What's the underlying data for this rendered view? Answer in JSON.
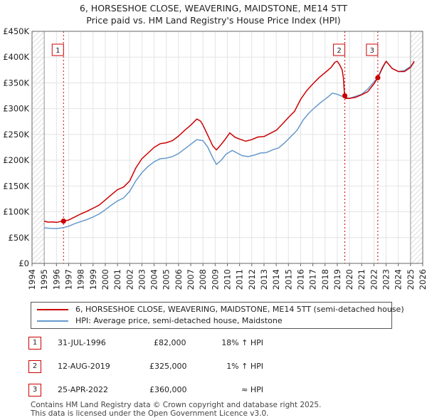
{
  "header": {
    "title_line1": "6, HORSESHOE CLOSE, WEAVERING, MAIDSTONE, ME14 5TT",
    "title_line2": "Price paid vs. HM Land Registry's House Price Index (HPI)"
  },
  "colors": {
    "property": "#cc0000",
    "hpi": "#6699cc",
    "marker_line": "#cc0000",
    "grid": "#e4e4e4",
    "hatch": "#c8c8c8"
  },
  "chart_data": {
    "type": "line",
    "x_range": [
      1994,
      2026
    ],
    "ylim": [
      0,
      450000
    ],
    "y_ticks": [
      {
        "value": 0,
        "label": "£0"
      },
      {
        "value": 50000,
        "label": "£50K"
      },
      {
        "value": 100000,
        "label": "£100K"
      },
      {
        "value": 150000,
        "label": "£150K"
      },
      {
        "value": 200000,
        "label": "£200K"
      },
      {
        "value": 250000,
        "label": "£250K"
      },
      {
        "value": 300000,
        "label": "£300K"
      },
      {
        "value": 350000,
        "label": "£350K"
      },
      {
        "value": 400000,
        "label": "£400K"
      },
      {
        "value": 450000,
        "label": "£450K"
      }
    ],
    "x_ticks": [
      "1994",
      "1995",
      "1996",
      "1997",
      "1998",
      "1999",
      "2000",
      "2001",
      "2002",
      "2003",
      "2004",
      "2005",
      "2006",
      "2007",
      "2008",
      "2009",
      "2010",
      "2011",
      "2012",
      "2013",
      "2014",
      "2015",
      "2016",
      "2017",
      "2018",
      "2019",
      "2020",
      "2021",
      "2022",
      "2023",
      "2024",
      "2025",
      "2026"
    ],
    "hatched_periods": [
      [
        1994,
        1995.0
      ],
      [
        2025.0,
        2026
      ]
    ],
    "series": [
      {
        "name": "6, HORSESHOE CLOSE, WEAVERING, MAIDSTONE, ME14 5TT (semi-detached house)",
        "color": "#cc0000",
        "points": [
          [
            1995.0,
            82000
          ],
          [
            1995.3,
            80000
          ],
          [
            1995.7,
            80500
          ],
          [
            1996.0,
            79500
          ],
          [
            1996.3,
            81000
          ],
          [
            1996.58,
            82000
          ],
          [
            1997.0,
            84000
          ],
          [
            1997.5,
            90000
          ],
          [
            1998.0,
            96000
          ],
          [
            1998.5,
            101000
          ],
          [
            1999.0,
            107000
          ],
          [
            1999.5,
            113000
          ],
          [
            2000.0,
            123000
          ],
          [
            2000.5,
            133000
          ],
          [
            2001.0,
            143000
          ],
          [
            2001.5,
            148000
          ],
          [
            2002.0,
            160000
          ],
          [
            2002.5,
            185000
          ],
          [
            2003.0,
            203000
          ],
          [
            2003.5,
            214000
          ],
          [
            2004.0,
            225000
          ],
          [
            2004.5,
            232000
          ],
          [
            2005.0,
            234000
          ],
          [
            2005.5,
            238000
          ],
          [
            2006.0,
            247000
          ],
          [
            2006.5,
            258000
          ],
          [
            2007.0,
            268000
          ],
          [
            2007.5,
            280000
          ],
          [
            2007.8,
            276000
          ],
          [
            2008.0,
            268000
          ],
          [
            2008.4,
            248000
          ],
          [
            2008.8,
            228000
          ],
          [
            2009.1,
            220000
          ],
          [
            2009.4,
            228000
          ],
          [
            2009.8,
            240000
          ],
          [
            2010.2,
            253000
          ],
          [
            2010.6,
            245000
          ],
          [
            2011.0,
            241000
          ],
          [
            2011.5,
            237000
          ],
          [
            2012.0,
            240000
          ],
          [
            2012.5,
            245000
          ],
          [
            2013.0,
            246000
          ],
          [
            2013.5,
            252000
          ],
          [
            2014.0,
            258000
          ],
          [
            2014.5,
            270000
          ],
          [
            2015.0,
            283000
          ],
          [
            2015.5,
            295000
          ],
          [
            2016.0,
            318000
          ],
          [
            2016.5,
            335000
          ],
          [
            2017.0,
            348000
          ],
          [
            2017.5,
            360000
          ],
          [
            2018.0,
            370000
          ],
          [
            2018.5,
            380000
          ],
          [
            2018.8,
            390000
          ],
          [
            2019.0,
            392000
          ],
          [
            2019.2,
            385000
          ],
          [
            2019.4,
            375000
          ],
          [
            2019.5,
            360000
          ],
          [
            2019.6,
            325000
          ],
          [
            2019.65,
            320000
          ],
          [
            2020.0,
            320000
          ],
          [
            2020.5,
            322000
          ],
          [
            2021.0,
            327000
          ],
          [
            2021.5,
            333000
          ],
          [
            2022.0,
            348000
          ],
          [
            2022.32,
            360000
          ],
          [
            2022.7,
            380000
          ],
          [
            2023.0,
            392000
          ],
          [
            2023.5,
            378000
          ],
          [
            2024.0,
            372000
          ],
          [
            2024.5,
            372000
          ],
          [
            2025.0,
            380000
          ],
          [
            2025.3,
            392000
          ]
        ]
      },
      {
        "name": "HPI: Average price, semi-detached house, Maidstone",
        "color": "#6699cc",
        "points": [
          [
            1995.0,
            69000
          ],
          [
            1995.5,
            68000
          ],
          [
            1996.0,
            67500
          ],
          [
            1996.58,
            69500
          ],
          [
            1997.0,
            72000
          ],
          [
            1997.5,
            77000
          ],
          [
            1998.0,
            81000
          ],
          [
            1998.5,
            85000
          ],
          [
            1999.0,
            90000
          ],
          [
            1999.5,
            96000
          ],
          [
            2000.0,
            104000
          ],
          [
            2000.5,
            113000
          ],
          [
            2001.0,
            121000
          ],
          [
            2001.5,
            127000
          ],
          [
            2002.0,
            140000
          ],
          [
            2002.5,
            160000
          ],
          [
            2003.0,
            176000
          ],
          [
            2003.5,
            188000
          ],
          [
            2004.0,
            197000
          ],
          [
            2004.5,
            203000
          ],
          [
            2005.0,
            204000
          ],
          [
            2005.5,
            207000
          ],
          [
            2006.0,
            213000
          ],
          [
            2006.5,
            222000
          ],
          [
            2007.0,
            231000
          ],
          [
            2007.5,
            240000
          ],
          [
            2008.0,
            238000
          ],
          [
            2008.4,
            225000
          ],
          [
            2008.8,
            205000
          ],
          [
            2009.1,
            192000
          ],
          [
            2009.5,
            200000
          ],
          [
            2009.9,
            212000
          ],
          [
            2010.4,
            219000
          ],
          [
            2010.8,
            214000
          ],
          [
            2011.2,
            209000
          ],
          [
            2011.7,
            207000
          ],
          [
            2012.2,
            210000
          ],
          [
            2012.7,
            214000
          ],
          [
            2013.2,
            215000
          ],
          [
            2013.7,
            220000
          ],
          [
            2014.2,
            224000
          ],
          [
            2014.7,
            234000
          ],
          [
            2015.2,
            246000
          ],
          [
            2015.7,
            258000
          ],
          [
            2016.2,
            278000
          ],
          [
            2016.7,
            292000
          ],
          [
            2017.2,
            303000
          ],
          [
            2017.7,
            313000
          ],
          [
            2018.2,
            322000
          ],
          [
            2018.6,
            330000
          ],
          [
            2019.0,
            328000
          ],
          [
            2019.6,
            322000
          ],
          [
            2020.0,
            320000
          ],
          [
            2020.5,
            324000
          ],
          [
            2021.0,
            328000
          ],
          [
            2021.5,
            338000
          ],
          [
            2022.0,
            352000
          ],
          [
            2022.32,
            360000
          ],
          [
            2022.7,
            378000
          ],
          [
            2023.0,
            392000
          ],
          [
            2023.5,
            378000
          ],
          [
            2024.0,
            372000
          ],
          [
            2024.5,
            374000
          ],
          [
            2025.0,
            382000
          ],
          [
            2025.3,
            390000
          ]
        ]
      }
    ],
    "sales": [
      {
        "id": "1",
        "x": 1996.58,
        "y": 82000
      },
      {
        "id": "2",
        "x": 2019.62,
        "y": 325000
      },
      {
        "id": "3",
        "x": 2022.32,
        "y": 360000
      }
    ]
  },
  "legend": {
    "property_label": "6, HORSESHOE CLOSE, WEAVERING, MAIDSTONE, ME14 5TT (semi-detached house)",
    "hpi_label": "HPI: Average price, semi-detached house, Maidstone"
  },
  "transactions": [
    {
      "num": "1",
      "date": "31-JUL-1996",
      "price": "£82,000",
      "hpi": "18% ↑ HPI"
    },
    {
      "num": "2",
      "date": "12-AUG-2019",
      "price": "£325,000",
      "hpi": "1% ↑ HPI"
    },
    {
      "num": "3",
      "date": "25-APR-2022",
      "price": "£360,000",
      "hpi": "≈ HPI"
    }
  ],
  "footer": {
    "line1": "Contains HM Land Registry data © Crown copyright and database right 2025.",
    "line2": "This data is licensed under the Open Government Licence v3.0."
  }
}
